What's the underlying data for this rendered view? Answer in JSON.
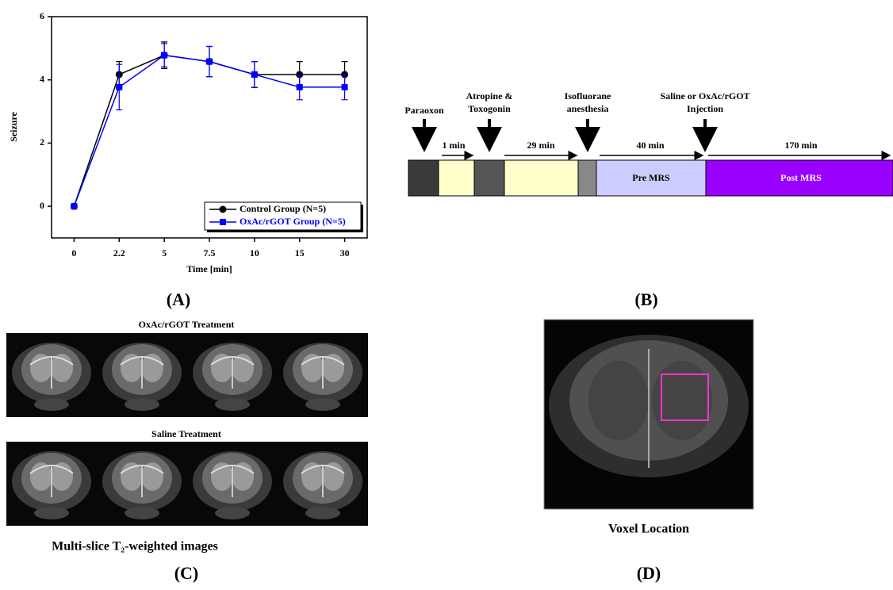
{
  "chart_data": {
    "type": "line",
    "xlabel": "Time [min]",
    "ylabel": "Seizure",
    "categories": [
      "0",
      "2.2",
      "5",
      "7.5",
      "10",
      "15",
      "30"
    ],
    "series": [
      {
        "name": "Control Group (N=5)",
        "color": "#000000",
        "marker": "circle",
        "values": [
          0,
          4.17,
          4.78,
          4.58,
          4.17,
          4.17,
          4.17
        ],
        "errors": [
          0,
          0.41,
          0.42,
          0.48,
          0.41,
          0.41,
          0.41
        ]
      },
      {
        "name": "OxAc/rGOT Group (N=5)",
        "color": "#0000ff",
        "marker": "square",
        "values": [
          0,
          3.77,
          4.78,
          4.58,
          4.17,
          3.77,
          3.77
        ],
        "errors": [
          0,
          0.72,
          0.37,
          0.48,
          0.41,
          0.4,
          0.4
        ]
      }
    ],
    "ylim": [
      -1,
      6
    ],
    "yticks": [
      0,
      2,
      4,
      6
    ],
    "legend": "lower right"
  },
  "timeline": {
    "events": [
      "Paraoxon",
      "Atropine &",
      "Toxogonin",
      "Isofluorane",
      "anesthesia",
      "Saline or OxAc/rGOT",
      "Injection"
    ],
    "intervals": [
      "1 min",
      "29 min",
      "40 min",
      "170 min"
    ],
    "phases": [
      "Pre MRS",
      "Post MRS"
    ]
  },
  "images": {
    "top_title": "OxAc/rGOT Treatment",
    "bottom_title": "Saline Treatment",
    "caption": "Multi-slice T₂-weighted images",
    "voxel_caption": "Voxel Location"
  },
  "panel_labels": [
    "(A)",
    "(B)",
    "(C)",
    "(D)"
  ]
}
